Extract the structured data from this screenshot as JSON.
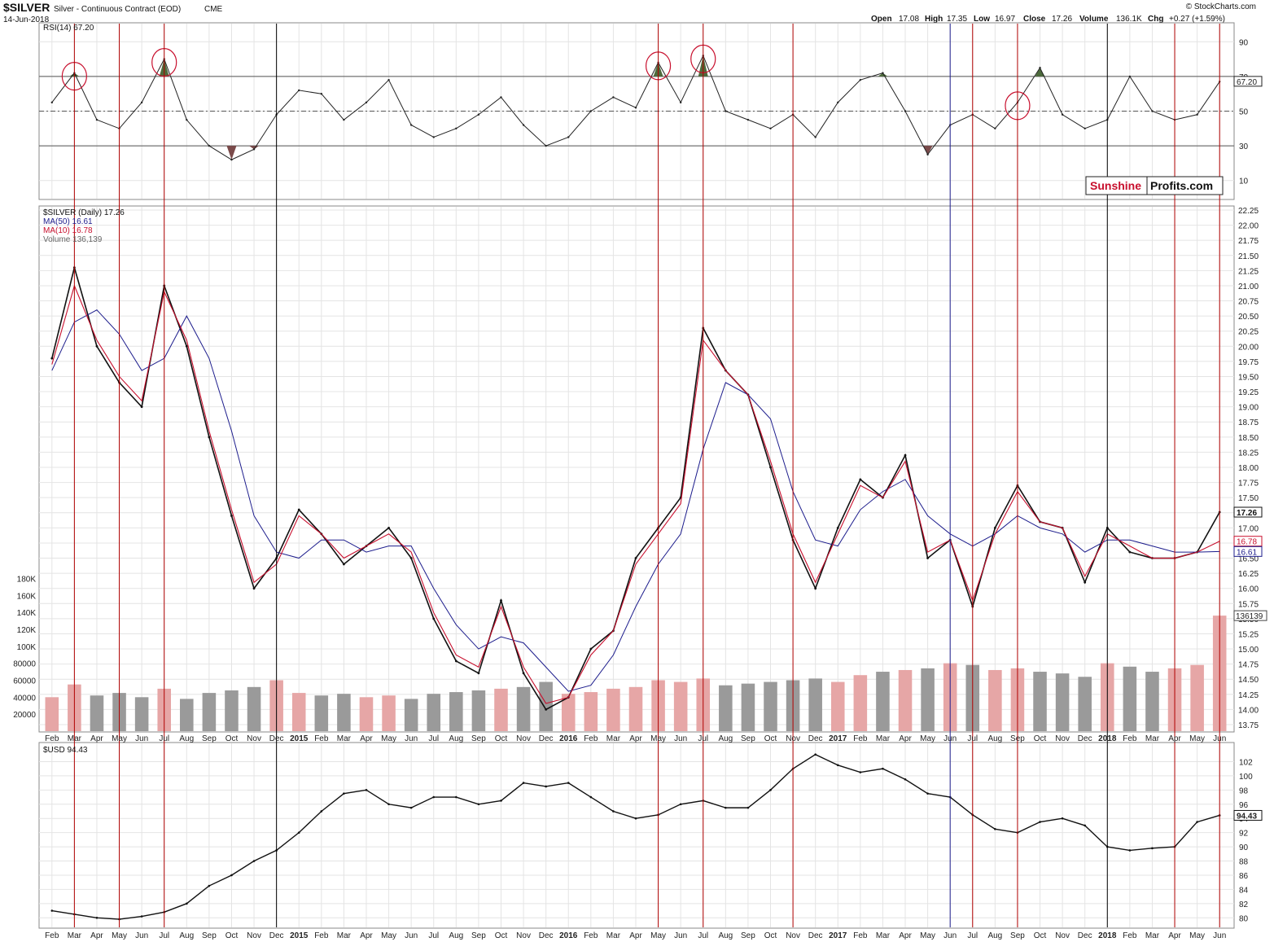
{
  "header": {
    "symbol": "$SILVER",
    "description": "Silver - Continuous Contract (EOD)",
    "exchange": "CME",
    "date": "14-Jun-2018",
    "credit": "© StockCharts.com",
    "ohlc": {
      "open_label": "Open",
      "open": "17.08",
      "high_label": "High",
      "high": "17.35",
      "low_label": "Low",
      "low": "16.97",
      "close_label": "Close",
      "close": "17.26",
      "volume_label": "Volume",
      "volume": "136.1K",
      "chg_label": "Chg",
      "chg": "+0.27 (+1.59%)"
    }
  },
  "logo": {
    "left": "Sunshine",
    "right": "Profits.com",
    "left_color": "#c8102e"
  },
  "colors": {
    "price": "#111111",
    "ma50": "#1c1c8c",
    "ma10": "#c8102e",
    "vol_up": "#e6a6a6",
    "vol_down": "#9a9a9a",
    "rsi_overbought": "#4d6b3c",
    "rsi_oversold": "#7a4a4a",
    "vline_red": "#b00000",
    "vline_black": "#000000",
    "vline_blue": "#1c1c8c",
    "grid": "#e4e4e4"
  },
  "chart_data": [
    {
      "type": "line",
      "panel": "rsi",
      "legend": "RSI(14) 67.20",
      "last_value": "67.20",
      "ylim": [
        0,
        100
      ],
      "yticks": [
        "90",
        "70",
        "50",
        "30",
        "10"
      ],
      "reference_lines": [
        70,
        50,
        30
      ],
      "series": [
        {
          "x": [
            "2014-02",
            "2014-03",
            "2014-04",
            "2014-05",
            "2014-06",
            "2014-07",
            "2014-08",
            "2014-09",
            "2014-10",
            "2014-11",
            "2014-12",
            "2015-01",
            "2015-02",
            "2015-03",
            "2015-04",
            "2015-05",
            "2015-06",
            "2015-07",
            "2015-08",
            "2015-09",
            "2015-10",
            "2015-11",
            "2015-12",
            "2016-01",
            "2016-02",
            "2016-03",
            "2016-04",
            "2016-05",
            "2016-06",
            "2016-07",
            "2016-08",
            "2016-09",
            "2016-10",
            "2016-11",
            "2016-12",
            "2017-01",
            "2017-02",
            "2017-03",
            "2017-04",
            "2017-05",
            "2017-06",
            "2017-07",
            "2017-08",
            "2017-09",
            "2017-10",
            "2017-11",
            "2017-12",
            "2018-01",
            "2018-02",
            "2018-03",
            "2018-04",
            "2018-05",
            "2018-06"
          ],
          "values": [
            55,
            72,
            45,
            40,
            55,
            80,
            45,
            30,
            22,
            28,
            48,
            62,
            60,
            45,
            55,
            68,
            42,
            35,
            40,
            48,
            58,
            42,
            30,
            35,
            50,
            58,
            52,
            78,
            55,
            82,
            50,
            45,
            40,
            48,
            35,
            55,
            68,
            72,
            50,
            25,
            42,
            48,
            40,
            55,
            75,
            48,
            40,
            45,
            70,
            50,
            45,
            48,
            67
          ]
        }
      ],
      "highlight_circles": [
        "2014-03",
        "2014-07",
        "2016-05",
        "2016-07",
        "2017-09"
      ]
    },
    {
      "type": "line",
      "panel": "price",
      "legend": [
        "$SILVER (Daily) 17.26",
        "MA(50) 16.61",
        "MA(10) 16.78",
        "Volume 136,139"
      ],
      "ylim": [
        13.75,
        22.25
      ],
      "yticks": [
        "22.25",
        "22.00",
        "21.75",
        "21.50",
        "21.25",
        "21.00",
        "20.75",
        "20.50",
        "20.25",
        "20.00",
        "19.75",
        "19.50",
        "19.25",
        "19.00",
        "18.75",
        "18.50",
        "18.25",
        "18.00",
        "17.75",
        "17.50",
        "17.25",
        "17.00",
        "16.75",
        "16.50",
        "16.25",
        "16.00",
        "15.75",
        "15.50",
        "15.25",
        "15.00",
        "14.75",
        "14.50",
        "14.25",
        "14.00",
        "13.75"
      ],
      "last_labels": {
        "close": "17.26",
        "ma10": "16.78",
        "ma50": "16.61",
        "volume": "136139"
      },
      "x": [
        "2014-02",
        "2014-03",
        "2014-04",
        "2014-05",
        "2014-06",
        "2014-07",
        "2014-08",
        "2014-09",
        "2014-10",
        "2014-11",
        "2014-12",
        "2015-01",
        "2015-02",
        "2015-03",
        "2015-04",
        "2015-05",
        "2015-06",
        "2015-07",
        "2015-08",
        "2015-09",
        "2015-10",
        "2015-11",
        "2015-12",
        "2016-01",
        "2016-02",
        "2016-03",
        "2016-04",
        "2016-05",
        "2016-06",
        "2016-07",
        "2016-08",
        "2016-09",
        "2016-10",
        "2016-11",
        "2016-12",
        "2017-01",
        "2017-02",
        "2017-03",
        "2017-04",
        "2017-05",
        "2017-06",
        "2017-07",
        "2017-08",
        "2017-09",
        "2017-10",
        "2017-11",
        "2017-12",
        "2018-01",
        "2018-02",
        "2018-03",
        "2018-04",
        "2018-05",
        "2018-06"
      ],
      "series": [
        {
          "name": "$SILVER (Daily)",
          "values": [
            19.8,
            21.3,
            20.0,
            19.4,
            19.0,
            21.0,
            20.0,
            18.5,
            17.2,
            16.0,
            16.5,
            17.3,
            16.9,
            16.4,
            16.7,
            17.0,
            16.5,
            15.5,
            14.8,
            14.6,
            15.8,
            14.6,
            14.0,
            14.2,
            15.0,
            15.3,
            16.5,
            17.0,
            17.5,
            20.3,
            19.6,
            19.2,
            18.0,
            16.8,
            16.0,
            17.0,
            17.8,
            17.5,
            18.2,
            16.5,
            16.8,
            15.7,
            17.0,
            17.7,
            17.1,
            17.0,
            16.1,
            17.0,
            16.6,
            16.5,
            16.5,
            16.6,
            17.26
          ]
        },
        {
          "name": "MA(50)",
          "values": [
            19.6,
            20.4,
            20.6,
            20.2,
            19.6,
            19.8,
            20.5,
            19.8,
            18.6,
            17.2,
            16.6,
            16.5,
            16.8,
            16.8,
            16.6,
            16.7,
            16.7,
            16.0,
            15.4,
            15.0,
            15.2,
            15.1,
            14.7,
            14.3,
            14.4,
            14.9,
            15.7,
            16.4,
            16.9,
            18.3,
            19.4,
            19.2,
            18.8,
            17.6,
            16.8,
            16.7,
            17.3,
            17.6,
            17.8,
            17.2,
            16.9,
            16.7,
            16.9,
            17.2,
            17.0,
            16.9,
            16.6,
            16.8,
            16.8,
            16.7,
            16.6,
            16.6,
            16.61
          ]
        },
        {
          "name": "MA(10)",
          "values": [
            19.7,
            21.0,
            20.1,
            19.5,
            19.1,
            20.9,
            20.1,
            18.6,
            17.3,
            16.1,
            16.4,
            17.2,
            16.9,
            16.5,
            16.7,
            16.9,
            16.6,
            15.6,
            14.9,
            14.7,
            15.7,
            14.7,
            14.1,
            14.2,
            14.9,
            15.3,
            16.4,
            16.9,
            17.4,
            20.1,
            19.6,
            19.2,
            18.1,
            16.9,
            16.1,
            16.9,
            17.7,
            17.5,
            18.1,
            16.6,
            16.8,
            15.8,
            16.9,
            17.6,
            17.1,
            17.0,
            16.2,
            16.9,
            16.7,
            16.5,
            16.5,
            16.6,
            16.78
          ]
        }
      ]
    },
    {
      "type": "bar",
      "panel": "volume",
      "ylim": [
        0,
        190000
      ],
      "yticks": [
        "180K",
        "160K",
        "140K",
        "120K",
        "100K",
        "80000",
        "60000",
        "40000",
        "20000"
      ],
      "x": [
        "2014-02",
        "2014-03",
        "2014-04",
        "2014-05",
        "2014-06",
        "2014-07",
        "2014-08",
        "2014-09",
        "2014-10",
        "2014-11",
        "2014-12",
        "2015-01",
        "2015-02",
        "2015-03",
        "2015-04",
        "2015-05",
        "2015-06",
        "2015-07",
        "2015-08",
        "2015-09",
        "2015-10",
        "2015-11",
        "2015-12",
        "2016-01",
        "2016-02",
        "2016-03",
        "2016-04",
        "2016-05",
        "2016-06",
        "2016-07",
        "2016-08",
        "2016-09",
        "2016-10",
        "2016-11",
        "2016-12",
        "2017-01",
        "2017-02",
        "2017-03",
        "2017-04",
        "2017-05",
        "2017-06",
        "2017-07",
        "2017-08",
        "2017-09",
        "2017-10",
        "2017-11",
        "2017-12",
        "2018-01",
        "2018-02",
        "2018-03",
        "2018-04",
        "2018-05",
        "2018-06"
      ],
      "values": [
        40000,
        55000,
        42000,
        45000,
        40000,
        50000,
        38000,
        45000,
        48000,
        52000,
        60000,
        45000,
        42000,
        44000,
        40000,
        42000,
        38000,
        44000,
        46000,
        48000,
        50000,
        52000,
        58000,
        44000,
        46000,
        50000,
        52000,
        60000,
        58000,
        62000,
        54000,
        56000,
        58000,
        60000,
        62000,
        58000,
        66000,
        70000,
        72000,
        74000,
        80000,
        78000,
        72000,
        74000,
        70000,
        68000,
        64000,
        80000,
        76000,
        70000,
        74000,
        78000,
        136139
      ]
    },
    {
      "type": "line",
      "panel": "usd",
      "legend": "$USD 94.43",
      "last_value": "94.43",
      "ylim": [
        79,
        104
      ],
      "yticks": [
        "102",
        "100",
        "98",
        "96",
        "94",
        "92",
        "90",
        "88",
        "86",
        "84",
        "82",
        "80"
      ],
      "x": [
        "2014-02",
        "2014-03",
        "2014-04",
        "2014-05",
        "2014-06",
        "2014-07",
        "2014-08",
        "2014-09",
        "2014-10",
        "2014-11",
        "2014-12",
        "2015-01",
        "2015-02",
        "2015-03",
        "2015-04",
        "2015-05",
        "2015-06",
        "2015-07",
        "2015-08",
        "2015-09",
        "2015-10",
        "2015-11",
        "2015-12",
        "2016-01",
        "2016-02",
        "2016-03",
        "2016-04",
        "2016-05",
        "2016-06",
        "2016-07",
        "2016-08",
        "2016-09",
        "2016-10",
        "2016-11",
        "2016-12",
        "2017-01",
        "2017-02",
        "2017-03",
        "2017-04",
        "2017-05",
        "2017-06",
        "2017-07",
        "2017-08",
        "2017-09",
        "2017-10",
        "2017-11",
        "2017-12",
        "2018-01",
        "2018-02",
        "2018-03",
        "2018-04",
        "2018-05",
        "2018-06"
      ],
      "values": [
        81,
        80.5,
        80,
        79.8,
        80.2,
        80.8,
        82,
        84.5,
        86,
        88,
        89.5,
        92,
        95,
        97.5,
        98,
        96,
        95.5,
        97,
        97,
        96,
        96.5,
        99,
        98.5,
        99,
        97,
        95,
        94,
        94.5,
        96,
        96.5,
        95.5,
        95.5,
        98,
        101,
        103,
        101.5,
        100.5,
        101,
        99.5,
        97.5,
        97,
        94.5,
        92.5,
        92,
        93.5,
        94,
        93,
        90,
        89.5,
        89.8,
        90,
        93.5,
        94.43
      ]
    }
  ],
  "axis": {
    "months_upper": [
      "Feb",
      "Mar",
      "Apr",
      "May",
      "Jun",
      "Jul",
      "Aug",
      "Sep",
      "Oct",
      "Nov",
      "Dec",
      "2015",
      "Feb",
      "Mar",
      "Apr",
      "May",
      "Jun",
      "Jul",
      "Aug",
      "Sep",
      "Oct",
      "Nov",
      "Dec",
      "2016",
      "Feb",
      "Mar",
      "Apr",
      "May",
      "Jun",
      "Jul",
      "Aug",
      "Sep",
      "Oct",
      "Nov",
      "Dec",
      "2017",
      "Feb",
      "Mar",
      "Apr",
      "May",
      "Jun",
      "Jul",
      "Aug",
      "Sep",
      "Oct",
      "Nov",
      "Dec",
      "2018",
      "Feb",
      "Mar",
      "Apr",
      "May",
      "Jun"
    ],
    "months_lower": [
      "Feb",
      "Mar",
      "Apr",
      "May",
      "Jun",
      "Jul",
      "Aug",
      "Sep",
      "Oct",
      "Nov",
      "Dec",
      "2015",
      "Feb",
      "Mar",
      "Apr",
      "May",
      "Jun",
      "Jul",
      "Aug",
      "Sep",
      "Oct",
      "Nov",
      "Dec",
      "2016",
      "Feb",
      "Mar",
      "Apr",
      "May",
      "Jun",
      "Jul",
      "Aug",
      "Sep",
      "Oct",
      "Nov",
      "Dec",
      "2017",
      "Feb",
      "Mar",
      "Apr",
      "May",
      "Jun",
      "Jul",
      "Aug",
      "Sep",
      "Oct",
      "Nov",
      "Dec",
      "2018",
      "Feb",
      "Mar",
      "Apr",
      "May",
      "Jun"
    ]
  },
  "vertical_markers": [
    {
      "date": "2014-03",
      "color": "red"
    },
    {
      "date": "2014-05",
      "color": "red"
    },
    {
      "date": "2014-07",
      "color": "red"
    },
    {
      "date": "2014-12",
      "color": "black"
    },
    {
      "date": "2016-05",
      "color": "red"
    },
    {
      "date": "2016-07",
      "color": "red"
    },
    {
      "date": "2016-11",
      "color": "red"
    },
    {
      "date": "2017-06",
      "color": "blue"
    },
    {
      "date": "2017-07",
      "color": "red"
    },
    {
      "date": "2017-09",
      "color": "red"
    },
    {
      "date": "2018-01",
      "color": "black"
    },
    {
      "date": "2018-04",
      "color": "red"
    },
    {
      "date": "2018-06",
      "color": "red"
    }
  ]
}
